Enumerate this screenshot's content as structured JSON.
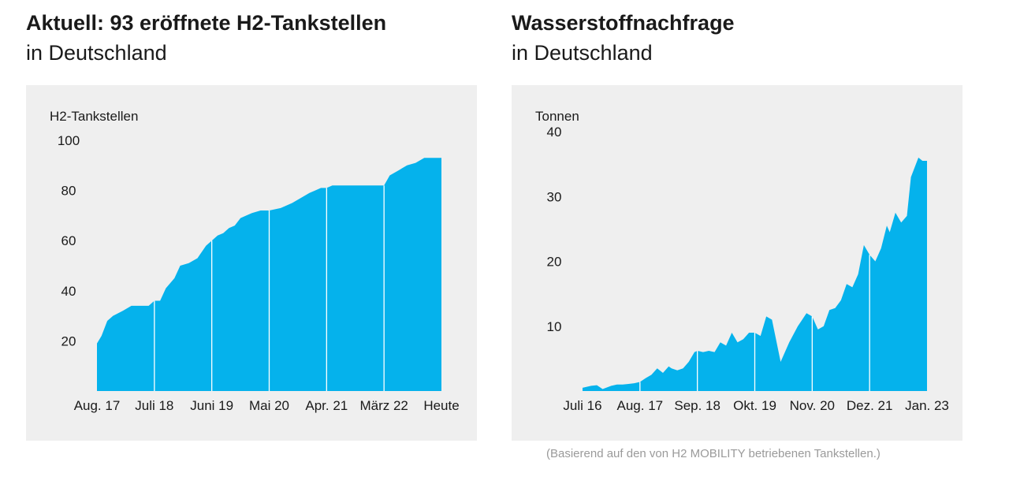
{
  "colors": {
    "fill": "#05b2ec",
    "panel_bg": "#efefef",
    "footnote": "#9a9a9a"
  },
  "footnote": "(Basierend auf den von H2 MOBILITY betriebenen Tankstellen.)",
  "chart_data": [
    {
      "type": "area",
      "title": "Aktuell: 93 eröffnete H2-Tankstellen",
      "subtitle": "in Deutschland",
      "ylabel": "H2-Tankstellen",
      "ylim": [
        0,
        100
      ],
      "yticks": [
        20,
        40,
        60,
        80,
        100
      ],
      "xlim": [
        0,
        6
      ],
      "xticks": [
        {
          "x": 0,
          "label": "Aug. 17"
        },
        {
          "x": 1,
          "label": "Juli 18"
        },
        {
          "x": 2,
          "label": "Juni 19"
        },
        {
          "x": 3,
          "label": "Mai 20"
        },
        {
          "x": 4,
          "label": "Apr. 21"
        },
        {
          "x": 5,
          "label": "März 22"
        },
        {
          "x": 6,
          "label": "Heute"
        }
      ],
      "x": [
        0,
        0.08,
        0.18,
        0.28,
        0.45,
        0.6,
        0.75,
        0.9,
        1.0,
        1.1,
        1.2,
        1.35,
        1.45,
        1.6,
        1.75,
        1.9,
        2.0,
        2.1,
        2.2,
        2.3,
        2.4,
        2.5,
        2.6,
        2.7,
        2.85,
        3.0,
        3.2,
        3.4,
        3.55,
        3.7,
        3.8,
        3.9,
        4.0,
        4.1,
        4.2,
        4.3,
        4.5,
        4.7,
        4.9,
        5.0,
        5.1,
        5.25,
        5.4,
        5.55,
        5.7,
        5.85,
        6.0
      ],
      "values": [
        19,
        22,
        28,
        30,
        32,
        34,
        34,
        34,
        36,
        36,
        41,
        45,
        50,
        51,
        53,
        58,
        60,
        62,
        63,
        65,
        66,
        69,
        70,
        71,
        72,
        72,
        73,
        75,
        77,
        79,
        80,
        81,
        81,
        82,
        82,
        82,
        82,
        82,
        82,
        82,
        86,
        88,
        90,
        91,
        93,
        93,
        93
      ],
      "highlight_x": [
        1,
        2,
        3,
        4,
        5
      ]
    },
    {
      "type": "area",
      "title": "Wasserstoffnachfrage",
      "subtitle": "in Deutschland",
      "ylabel": "Tonnen",
      "ylim": [
        0,
        40
      ],
      "yticks": [
        10,
        20,
        30,
        40
      ],
      "xlim": [
        0,
        6
      ],
      "xticks": [
        {
          "x": 0,
          "label": "Juli 16"
        },
        {
          "x": 1,
          "label": "Aug. 17"
        },
        {
          "x": 2,
          "label": "Sep. 18"
        },
        {
          "x": 3,
          "label": "Okt. 19"
        },
        {
          "x": 4,
          "label": "Nov. 20"
        },
        {
          "x": 5,
          "label": "Dez. 21"
        },
        {
          "x": 6,
          "label": "Jan. 23"
        }
      ],
      "x": [
        0,
        0.15,
        0.25,
        0.35,
        0.5,
        0.6,
        0.7,
        0.8,
        0.9,
        1.0,
        1.1,
        1.2,
        1.3,
        1.4,
        1.5,
        1.55,
        1.65,
        1.75,
        1.85,
        1.95,
        2.0,
        2.1,
        2.2,
        2.3,
        2.4,
        2.5,
        2.6,
        2.7,
        2.8,
        2.9,
        3.0,
        3.1,
        3.2,
        3.3,
        3.45,
        3.6,
        3.75,
        3.9,
        4.0,
        4.1,
        4.2,
        4.3,
        4.4,
        4.5,
        4.6,
        4.7,
        4.8,
        4.9,
        5.0,
        5.1,
        5.2,
        5.3,
        5.35,
        5.45,
        5.55,
        5.65,
        5.72,
        5.85,
        5.92,
        6.0
      ],
      "values": [
        0.5,
        0.8,
        0.9,
        0.3,
        0.8,
        1.0,
        1.0,
        1.1,
        1.2,
        1.4,
        2.0,
        2.5,
        3.5,
        2.8,
        3.8,
        3.5,
        3.2,
        3.5,
        4.5,
        6.0,
        6.2,
        6.0,
        6.2,
        6.0,
        7.5,
        7.0,
        9.0,
        7.5,
        8.0,
        9.0,
        9.0,
        8.5,
        11.5,
        11.0,
        4.5,
        7.5,
        10.0,
        12.0,
        11.5,
        9.5,
        10.0,
        12.5,
        12.8,
        14.0,
        16.5,
        16.0,
        18.0,
        22.5,
        21.0,
        20.0,
        22.0,
        25.5,
        24.5,
        27.5,
        26.0,
        27.0,
        33.0,
        36.0,
        35.5,
        35.5
      ],
      "highlight_x": [
        1,
        2,
        3,
        4,
        5
      ]
    }
  ]
}
